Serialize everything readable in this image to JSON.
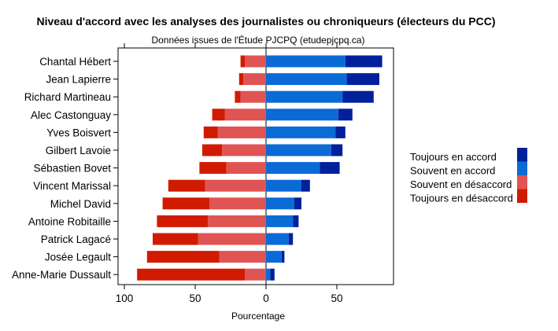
{
  "chart_data": {
    "type": "bar",
    "orientation": "horizontal-diverging",
    "title": "Niveau d'accord avec les analyses des journalistes ou chroniqueurs (électeurs du PCC)",
    "subtitle": "Données issues de l'Étude PJCPQ (etudepjcpq.ca)",
    "xlabel": "Pourcentage",
    "ylabel": "",
    "xlim": [
      -100,
      90
    ],
    "xticks": [
      -100,
      -50,
      0,
      50
    ],
    "xtick_labels": [
      "100",
      "50",
      "0",
      "50"
    ],
    "categories": [
      "Chantal Hébert",
      "Jean Lapierre",
      "Richard Martineau",
      "Alec Castonguay",
      "Yves Boisvert",
      "Gilbert Lavoie",
      "Sébastien Bovet",
      "Vincent Marissal",
      "Michel David",
      "Antoine Robitaille",
      "Patrick Lagacé",
      "Josée Legault",
      "Anne-Marie Dussault"
    ],
    "series": [
      {
        "name": "Toujours en désaccord",
        "side": "negative",
        "color": "#d11b00",
        "values": [
          3,
          3,
          4,
          9,
          10,
          14,
          19,
          26,
          33,
          36,
          32,
          51,
          76
        ]
      },
      {
        "name": "Souvent en désaccord",
        "side": "negative",
        "color": "#e05454",
        "values": [
          15,
          16,
          18,
          29,
          34,
          31,
          28,
          43,
          40,
          41,
          48,
          33,
          15
        ]
      },
      {
        "name": "Souvent en accord",
        "side": "positive",
        "color": "#0a6bd6",
        "values": [
          56,
          57,
          54,
          51,
          49,
          46,
          38,
          25,
          20,
          19,
          16,
          11,
          3
        ]
      },
      {
        "name": "Toujours en accord",
        "side": "positive",
        "color": "#00209c",
        "values": [
          26,
          23,
          22,
          10,
          7,
          8,
          14,
          6,
          5,
          4,
          3,
          2,
          3
        ]
      }
    ],
    "legend": {
      "placement": "right",
      "order": [
        "Toujours en accord",
        "Souvent en accord",
        "Souvent en désaccord",
        "Toujours en désaccord"
      ]
    },
    "grid": false
  }
}
